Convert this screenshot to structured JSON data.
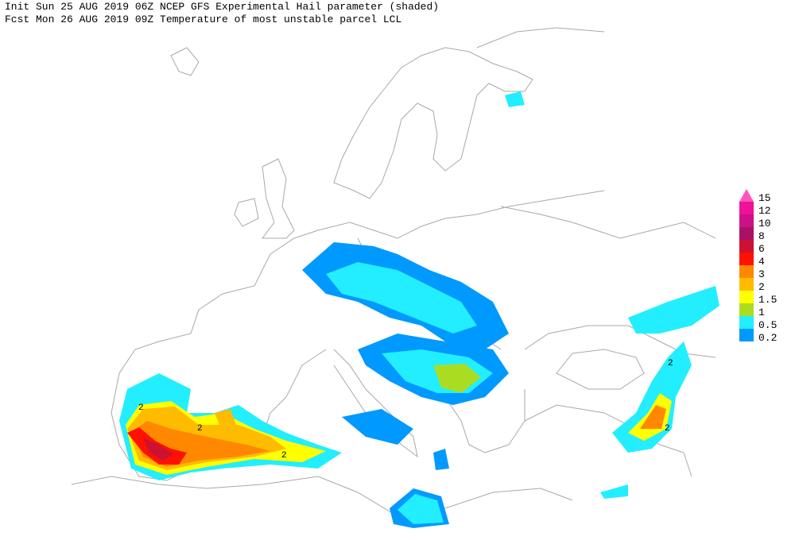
{
  "header": {
    "line1": "Init  Sun 25 AUG 2019 06Z  NCEP GFS Experimental Hail parameter (shaded)",
    "line2": "Fcst Mon 26 AUG 2019 09Z Temperature of most unstable parcel LCL"
  },
  "legend": {
    "items": [
      {
        "label": "15",
        "color": "#ff55bb"
      },
      {
        "label": "12",
        "color": "#ee1199"
      },
      {
        "label": "10",
        "color": "#cc1188"
      },
      {
        "label": "8",
        "color": "#aa1166"
      },
      {
        "label": "6",
        "color": "#cc1133"
      },
      {
        "label": "4",
        "color": "#ff1100"
      },
      {
        "label": "3",
        "color": "#ff8800"
      },
      {
        "label": "2",
        "color": "#ffbb00"
      },
      {
        "label": "1.5",
        "color": "#ffff00"
      },
      {
        "label": "1",
        "color": "#aadd22"
      },
      {
        "label": "0.5",
        "color": "#22eeff"
      },
      {
        "label": "0.2",
        "color": "#0099ff"
      }
    ]
  },
  "map": {
    "contour_labels": [
      "2",
      "2",
      "2",
      "2",
      "2"
    ]
  }
}
